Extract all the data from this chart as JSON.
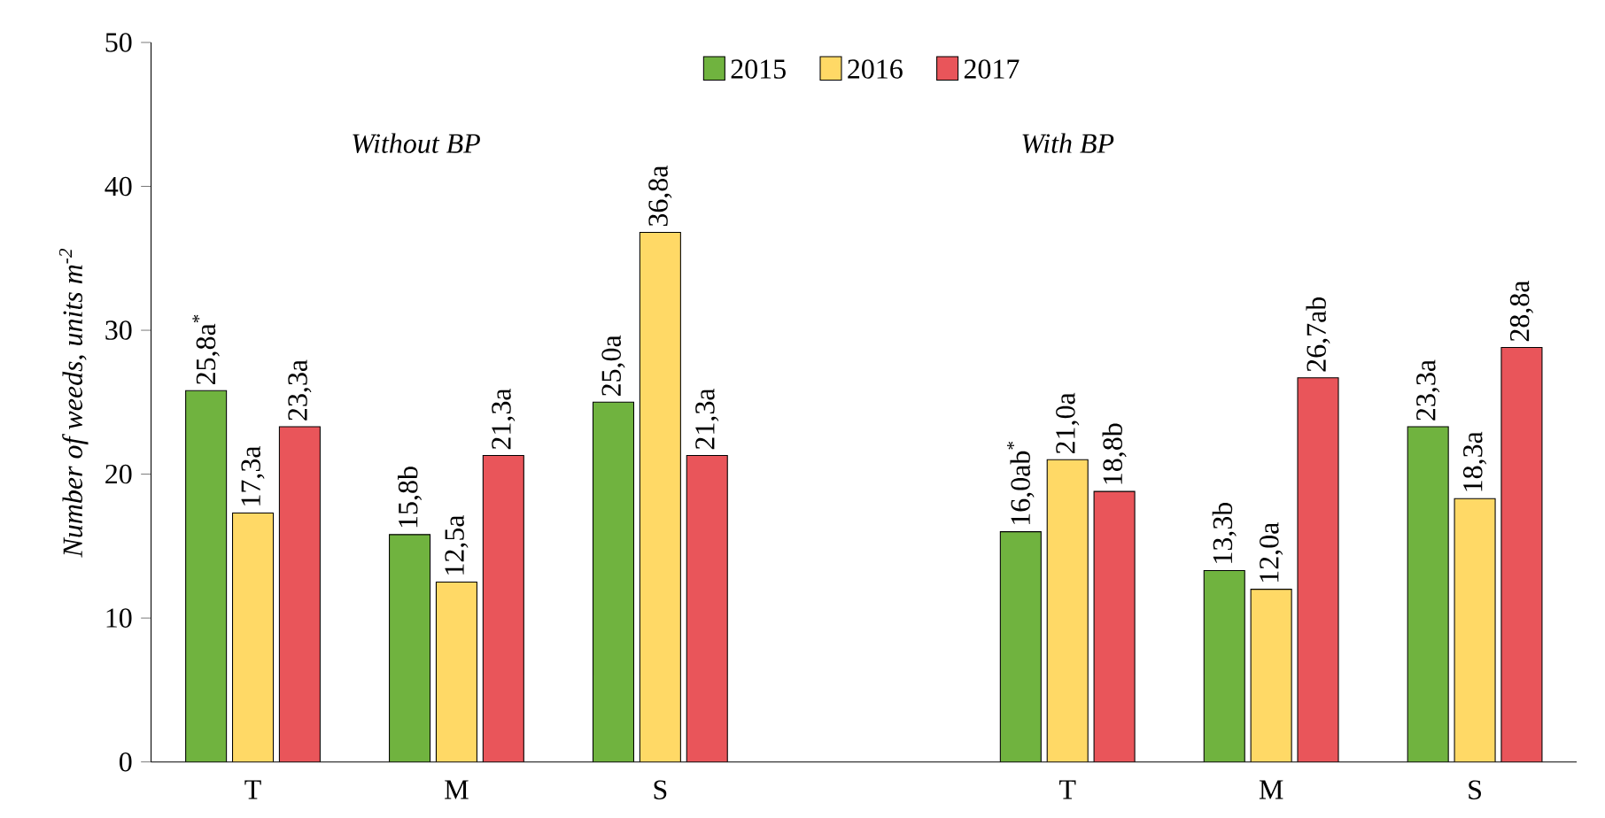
{
  "chart_data": {
    "type": "bar",
    "ylabel": "Number of weeds, units m$^{-2}$",
    "categories": [
      "T",
      "M",
      "S",
      null,
      "T",
      "M",
      "S"
    ],
    "series": [
      {
        "name": "2015",
        "color": "#70b33f",
        "values": [
          25.8,
          15.8,
          25.0,
          null,
          16.0,
          13.3,
          23.3
        ],
        "value_labels": [
          "25,8a$^{*}$",
          "15,8b",
          "25,0a",
          null,
          "16,0ab$^{*}$",
          "13,3b",
          "23,3a"
        ]
      },
      {
        "name": "2016",
        "color": "#ffd966",
        "values": [
          17.3,
          12.5,
          36.8,
          null,
          21.0,
          12.0,
          18.3
        ],
        "value_labels": [
          "17,3a",
          "12,5a",
          "36,8a",
          null,
          "21,0a",
          "12,0a",
          "18,3a"
        ]
      },
      {
        "name": "2017",
        "color": "#e9555a",
        "values": [
          23.3,
          21.3,
          21.3,
          null,
          18.8,
          26.7,
          28.8
        ],
        "value_labels": [
          "23,3a",
          "21,3a",
          "21,3a",
          null,
          "18,8b",
          "26,7ab",
          "28,8a"
        ]
      }
    ],
    "ylim": [
      0,
      50
    ],
    "yticks": [
      0,
      10,
      20,
      30,
      40,
      50
    ],
    "legend": "top",
    "annotations": [
      "Without BP",
      "With BP"
    ]
  }
}
